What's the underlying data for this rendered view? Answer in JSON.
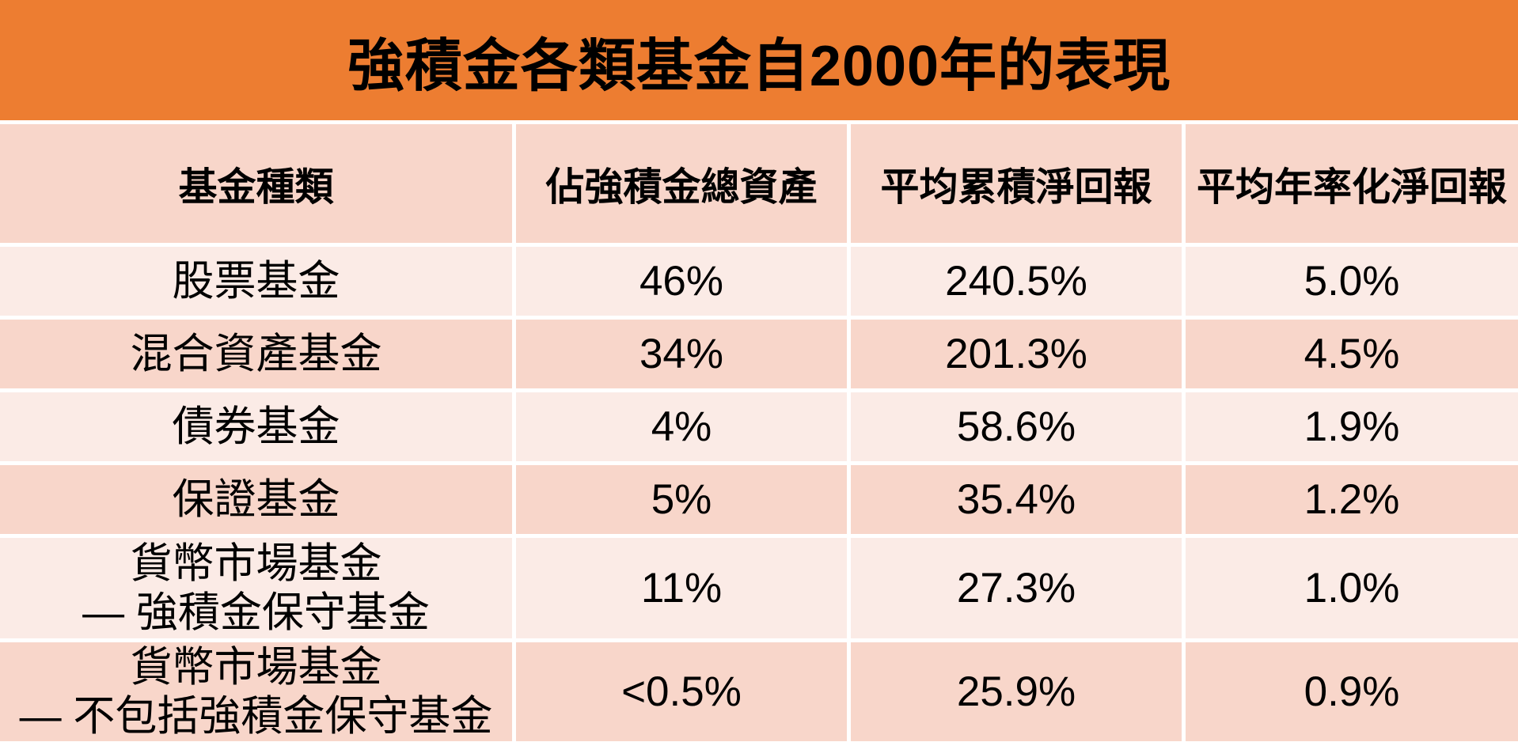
{
  "title": "強積金各類基金自2000年的表現",
  "colors": {
    "banner_orange": "#ED7D31",
    "band_dark": "#F8D6CA",
    "band_light": "#FBEBE6",
    "text_black": "#000000",
    "divider_white": "#FFFFFF"
  },
  "table": {
    "columns": [
      "基金種類",
      "佔強積金總資產",
      "平均累積淨回報",
      "平均年率化淨回報"
    ],
    "rows": [
      {
        "fund": [
          "股票基金"
        ],
        "share": "46%",
        "cumulative": "240.5%",
        "annualized": "5.0%"
      },
      {
        "fund": [
          "混合資產基金"
        ],
        "share": "34%",
        "cumulative": "201.3%",
        "annualized": "4.5%"
      },
      {
        "fund": [
          "債券基金"
        ],
        "share": "4%",
        "cumulative": "58.6%",
        "annualized": "1.9%"
      },
      {
        "fund": [
          "保證基金"
        ],
        "share": "5%",
        "cumulative": "35.4%",
        "annualized": "1.2%"
      },
      {
        "fund": [
          "貨幣市場基金",
          "— 強積金保守基金"
        ],
        "share": "11%",
        "cumulative": "27.3%",
        "annualized": "1.0%"
      },
      {
        "fund": [
          "貨幣市場基金",
          "— 不包括強積金保守基金"
        ],
        "share": "<0.5%",
        "cumulative": "25.9%",
        "annualized": "0.9%"
      }
    ]
  },
  "chart_data": {
    "type": "table",
    "title": "強積金各類基金自2000年的表現",
    "columns": [
      "基金種類",
      "佔強積金總資產",
      "平均累積淨回報",
      "平均年率化淨回報"
    ],
    "rows": [
      [
        "股票基金",
        "46%",
        "240.5%",
        "5.0%"
      ],
      [
        "混合資產基金",
        "34%",
        "201.3%",
        "4.5%"
      ],
      [
        "債券基金",
        "4%",
        "58.6%",
        "1.9%"
      ],
      [
        "保證基金",
        "5%",
        "35.4%",
        "1.2%"
      ],
      [
        "貨幣市場基金 — 強積金保守基金",
        "11%",
        "27.3%",
        "1.0%"
      ],
      [
        "貨幣市場基金 — 不包括強積金保守基金",
        "<0.5%",
        "25.9%",
        "0.9%"
      ]
    ]
  }
}
